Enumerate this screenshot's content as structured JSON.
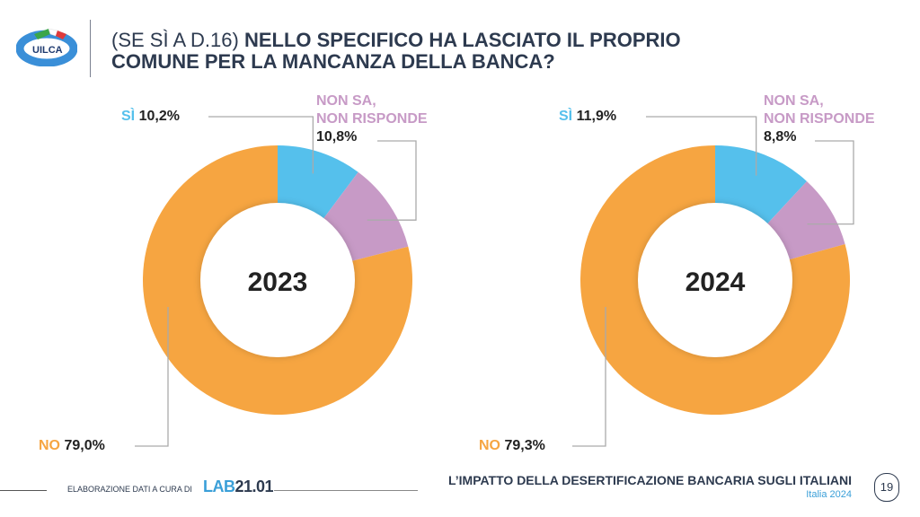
{
  "header": {
    "logo_text": "UILCA",
    "question_prefix": "(SE SÌ A D.16)",
    "question_bold": "NELLO SPECIFICO HA LASCIATO IL PROPRIO COMUNE PER LA MANCANZA DELLA BANCA?"
  },
  "colors": {
    "si": "#55c0ec",
    "non_sa": "#c79ac6",
    "no": "#f6a541",
    "text": "#2d3a4f"
  },
  "chart_data": [
    {
      "type": "pie",
      "title": "2023",
      "categories": [
        "SÌ",
        "NON SA, NON RISPONDE",
        "NO"
      ],
      "values": [
        10.2,
        10.8,
        79.0
      ],
      "labels": [
        "10,2%",
        "10,8%",
        "79,0%"
      ]
    },
    {
      "type": "pie",
      "title": "2024",
      "categories": [
        "SÌ",
        "NON SA, NON RISPONDE",
        "NO"
      ],
      "values": [
        11.9,
        8.8,
        79.3
      ],
      "labels": [
        "11,9%",
        "8,8%",
        "79,3%"
      ]
    }
  ],
  "legend": {
    "si": "SÌ",
    "non_sa_1": "NON SA,",
    "non_sa_2": "NON RISPONDE",
    "no": "NO"
  },
  "footer": {
    "credit": "ELABORAZIONE DATI A CURA DI",
    "lab_a": "LAB",
    "lab_b": "21.01",
    "title": "L’IMPATTO DELLA DESERTIFICAZIONE BANCARIA SUGLI ITALIANI",
    "subtitle": "Italia 2024",
    "page": "19"
  }
}
